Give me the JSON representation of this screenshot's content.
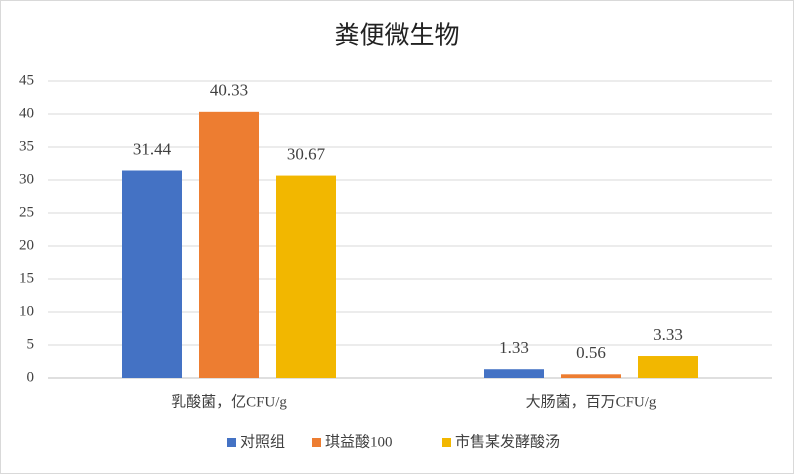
{
  "chart_data": {
    "type": "bar",
    "title": "粪便微生物",
    "categories": [
      "乳酸菌，亿CFU/g",
      "大肠菌，百万CFU/g"
    ],
    "series": [
      {
        "name": "对照组",
        "color": "#4472c4",
        "values": [
          31.44,
          1.33
        ]
      },
      {
        "name": "琪益酸100",
        "color": "#ed7d31",
        "values": [
          40.33,
          0.56
        ]
      },
      {
        "name": "市售某发酵酸汤",
        "color": "#f2b700",
        "values": [
          30.67,
          3.33
        ]
      }
    ],
    "ylim": [
      0,
      45
    ],
    "yticks": [
      0,
      5,
      10,
      15,
      20,
      25,
      30,
      35,
      40,
      45
    ],
    "grid": true,
    "legend": "bottom"
  }
}
